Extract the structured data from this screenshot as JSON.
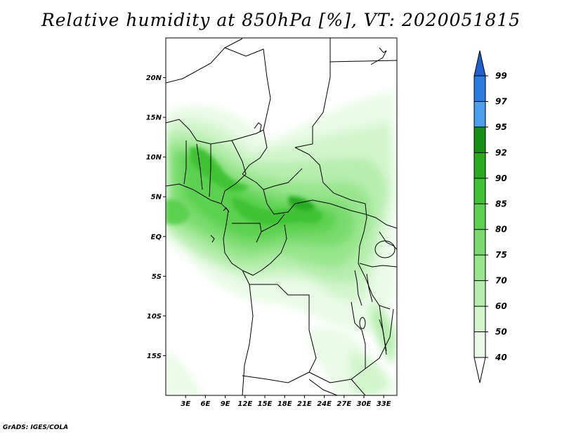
{
  "title": "Relative humidity at 850hPa [%], VT: 2020051815",
  "credit": "GrADS: IGES/COLA",
  "map": {
    "lon_range": [
      0,
      35
    ],
    "lat_range": [
      -20,
      25
    ],
    "lat_ticks": [
      "20N",
      "15N",
      "10N",
      "5N",
      "EQ",
      "5S",
      "10S",
      "15S"
    ],
    "lat_values": [
      20,
      15,
      10,
      5,
      0,
      -5,
      -10,
      -15
    ],
    "lon_ticks": [
      "3E",
      "6E",
      "9E",
      "12E",
      "15E",
      "18E",
      "21E",
      "24E",
      "27E",
      "30E",
      "33E"
    ],
    "lon_values": [
      3,
      6,
      9,
      12,
      15,
      18,
      21,
      24,
      27,
      30,
      33
    ]
  },
  "colorbar": {
    "levels": [
      "40",
      "50",
      "60",
      "70",
      "75",
      "80",
      "85",
      "90",
      "92",
      "95",
      "97",
      "99"
    ],
    "colors": [
      "#ffffff",
      "#e9fbe6",
      "#d2f5cc",
      "#b6eeae",
      "#98e58d",
      "#79db6d",
      "#5bd14f",
      "#3fc235",
      "#27ab21",
      "#168f12",
      "#4a9ff0",
      "#2a7be0",
      "#1f5fd0"
    ]
  }
}
